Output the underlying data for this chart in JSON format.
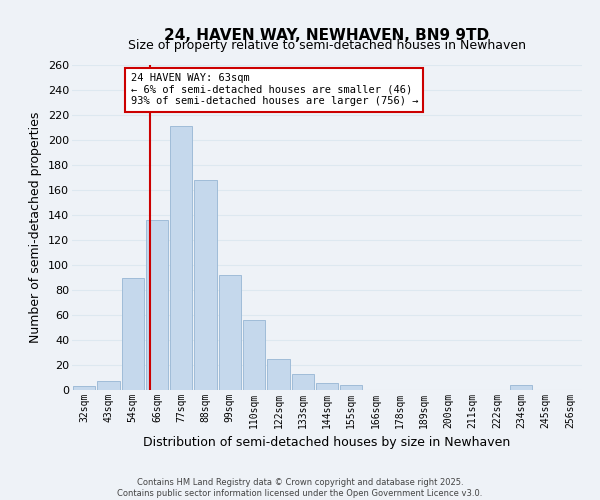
{
  "title": "24, HAVEN WAY, NEWHAVEN, BN9 9TD",
  "subtitle": "Size of property relative to semi-detached houses in Newhaven",
  "xlabel": "Distribution of semi-detached houses by size in Newhaven",
  "ylabel": "Number of semi-detached properties",
  "categories": [
    "32sqm",
    "43sqm",
    "54sqm",
    "66sqm",
    "77sqm",
    "88sqm",
    "99sqm",
    "110sqm",
    "122sqm",
    "133sqm",
    "144sqm",
    "155sqm",
    "166sqm",
    "178sqm",
    "189sqm",
    "200sqm",
    "211sqm",
    "222sqm",
    "234sqm",
    "245sqm",
    "256sqm"
  ],
  "values": [
    3,
    7,
    90,
    136,
    211,
    168,
    92,
    56,
    25,
    13,
    6,
    4,
    0,
    0,
    0,
    0,
    0,
    0,
    4,
    0,
    0
  ],
  "bar_color": "#c5d8ec",
  "bar_edge_color": "#a0bcd8",
  "grid_color": "#dde8f0",
  "background_color": "#eef2f7",
  "vline_color": "#cc0000",
  "vline_xindex": 2.72,
  "annotation_title": "24 HAVEN WAY: 63sqm",
  "annotation_line1": "← 6% of semi-detached houses are smaller (46)",
  "annotation_line2": "93% of semi-detached houses are larger (756) →",
  "annotation_box_color": "#ffffff",
  "annotation_box_edge": "#cc0000",
  "ylim": [
    0,
    260
  ],
  "yticks": [
    0,
    20,
    40,
    60,
    80,
    100,
    120,
    140,
    160,
    180,
    200,
    220,
    240,
    260
  ],
  "title_fontsize": 11,
  "subtitle_fontsize": 9,
  "footer1": "Contains HM Land Registry data © Crown copyright and database right 2025.",
  "footer2": "Contains public sector information licensed under the Open Government Licence v3.0."
}
